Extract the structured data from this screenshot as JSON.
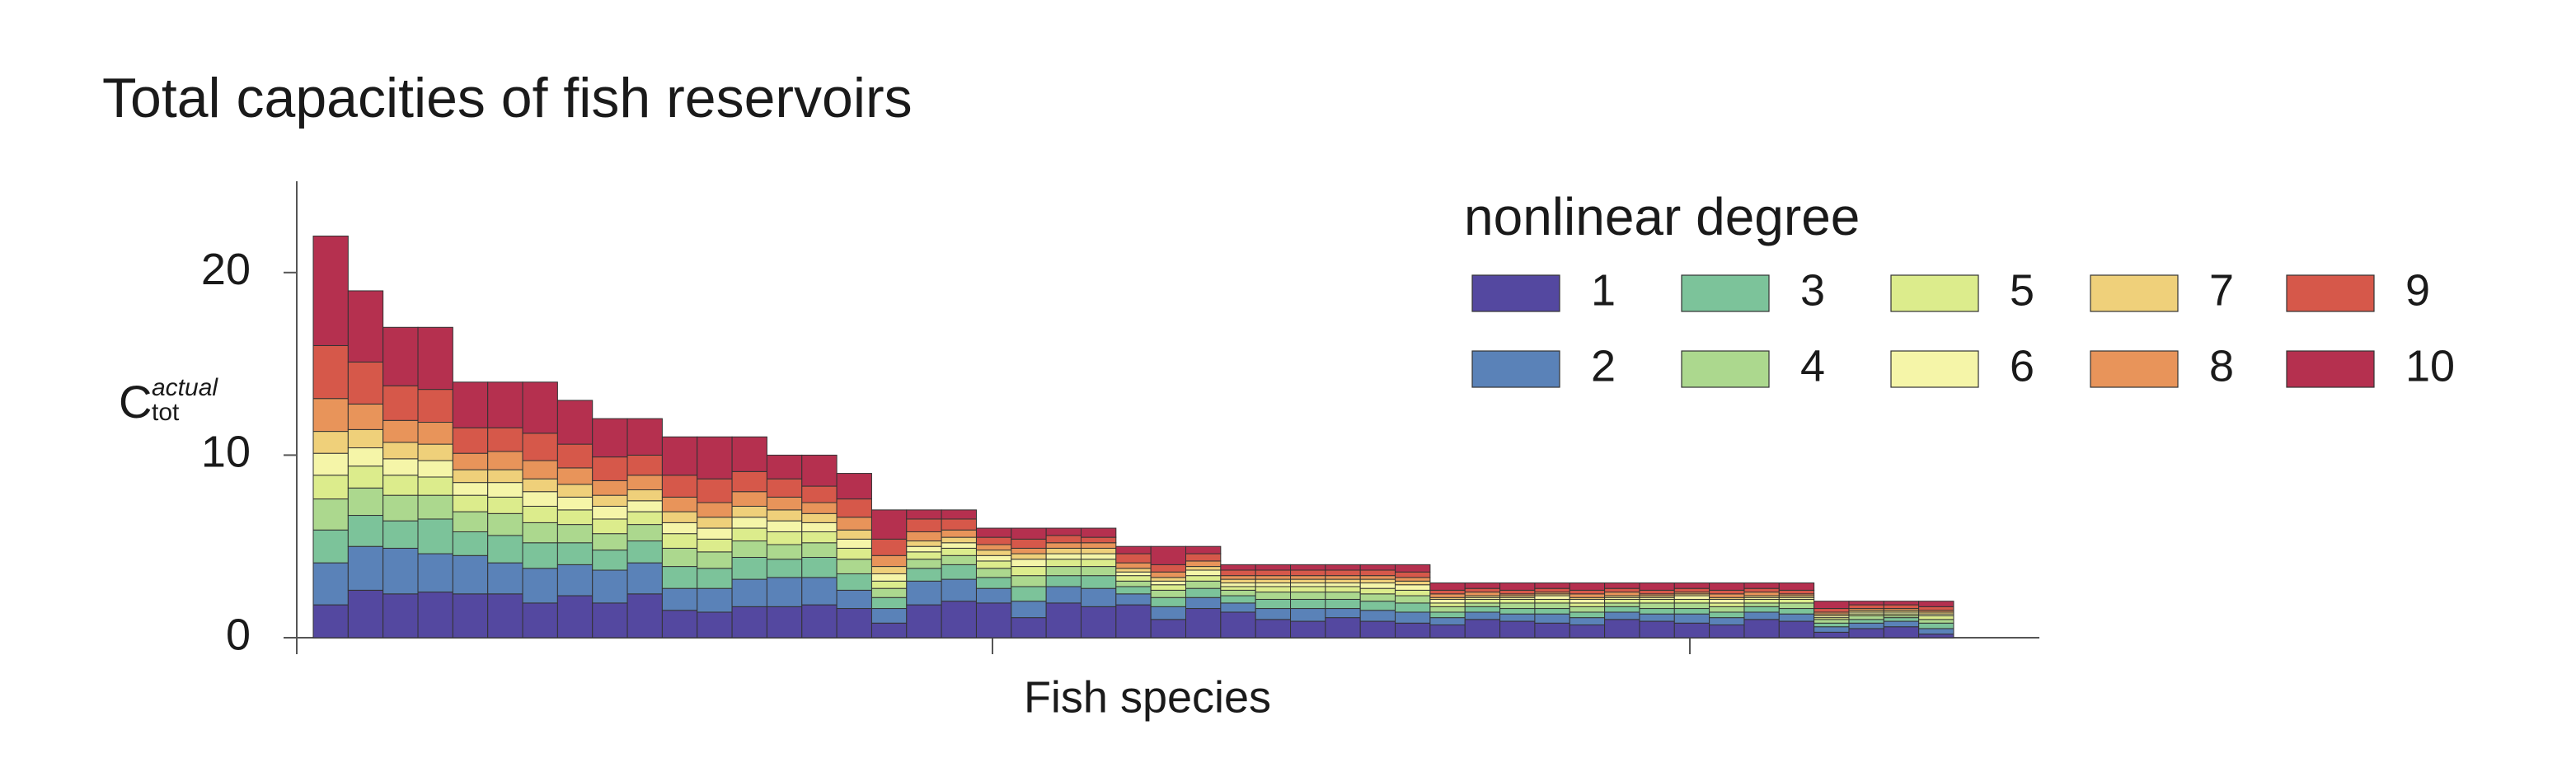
{
  "chart_data": {
    "type": "stacked_bar",
    "title": "Total capacities of fish reservoirs",
    "x_label": "Fish species",
    "y_label": {
      "main": "C",
      "sup": "actual",
      "sub": "tot"
    },
    "legend_title": "nonlinear degree",
    "legend_position": "upper right",
    "grid": false,
    "ylim": [
      0,
      25
    ],
    "yticks": [
      0,
      10,
      20
    ],
    "categories": [
      null,
      null,
      null,
      null,
      null,
      null,
      null,
      null,
      null,
      null,
      null,
      null,
      null,
      null,
      null,
      null,
      null,
      null,
      null,
      null,
      null,
      null,
      null,
      null,
      null,
      null,
      null,
      null,
      null,
      null,
      null,
      null,
      null,
      null,
      null,
      null,
      null,
      null,
      null,
      null,
      null,
      null,
      null,
      null,
      null,
      null,
      null
    ],
    "series": [
      {
        "name": "1",
        "color": "#5448a0",
        "values": [
          1.8,
          2.6,
          2.4,
          2.5,
          2.4,
          2.4,
          1.9,
          2.3,
          1.9,
          2.4,
          1.5,
          1.4,
          1.7,
          1.7,
          1.8,
          1.6,
          0.8,
          1.8,
          2.0,
          1.9,
          1.1,
          1.9,
          1.7,
          1.8,
          1.0,
          1.6,
          1.4,
          1.0,
          0.9,
          1.1,
          0.9,
          0.8,
          0.7,
          1.0,
          0.9,
          0.8,
          0.7,
          1.0,
          0.9,
          0.8,
          0.7,
          1.0,
          0.9,
          0.3,
          0.5,
          0.6,
          0.2
        ]
      },
      {
        "name": "2",
        "color": "#5a82b8",
        "values": [
          2.3,
          2.4,
          2.5,
          2.1,
          2.1,
          1.7,
          1.9,
          1.7,
          1.8,
          1.7,
          1.2,
          1.3,
          1.5,
          1.6,
          1.5,
          1.0,
          0.8,
          1.3,
          1.2,
          0.8,
          0.9,
          0.9,
          1.0,
          0.6,
          0.7,
          0.6,
          0.5,
          0.6,
          0.7,
          0.5,
          0.6,
          0.6,
          0.4,
          0.4,
          0.4,
          0.5,
          0.4,
          0.4,
          0.4,
          0.5,
          0.4,
          0.4,
          0.4,
          0.3,
          0.3,
          0.3,
          0.3
        ]
      },
      {
        "name": "3",
        "color": "#7cc39a",
        "values": [
          1.8,
          1.7,
          1.5,
          1.9,
          1.3,
          1.5,
          1.4,
          1.2,
          1.1,
          1.2,
          1.2,
          1.1,
          1.2,
          1.0,
          1.1,
          0.9,
          0.6,
          0.7,
          0.8,
          0.6,
          0.8,
          0.6,
          0.7,
          0.4,
          0.5,
          0.5,
          0.4,
          0.5,
          0.5,
          0.5,
          0.5,
          0.5,
          0.3,
          0.3,
          0.3,
          0.3,
          0.3,
          0.3,
          0.3,
          0.3,
          0.3,
          0.3,
          0.3,
          0.2,
          0.2,
          0.2,
          0.3
        ]
      },
      {
        "name": "4",
        "color": "#acd88e",
        "values": [
          1.7,
          1.5,
          1.4,
          1.3,
          1.1,
          1.2,
          1.1,
          1.0,
          0.9,
          0.9,
          1.0,
          0.9,
          0.9,
          0.8,
          0.8,
          0.8,
          0.5,
          0.5,
          0.5,
          0.5,
          0.6,
          0.5,
          0.5,
          0.3,
          0.4,
          0.4,
          0.3,
          0.4,
          0.4,
          0.4,
          0.4,
          0.4,
          0.3,
          0.2,
          0.3,
          0.3,
          0.3,
          0.2,
          0.3,
          0.3,
          0.3,
          0.2,
          0.3,
          0.2,
          0.2,
          0.1,
          0.2
        ]
      },
      {
        "name": "5",
        "color": "#dcec8c",
        "values": [
          1.3,
          1.2,
          1.1,
          1.0,
          0.9,
          0.9,
          0.9,
          0.8,
          0.8,
          0.7,
          0.8,
          0.7,
          0.7,
          0.7,
          0.6,
          0.6,
          0.4,
          0.4,
          0.4,
          0.4,
          0.5,
          0.4,
          0.4,
          0.3,
          0.3,
          0.3,
          0.2,
          0.3,
          0.3,
          0.3,
          0.3,
          0.3,
          0.2,
          0.2,
          0.2,
          0.2,
          0.2,
          0.2,
          0.2,
          0.2,
          0.2,
          0.2,
          0.2,
          0.1,
          0.1,
          0.1,
          0.2
        ]
      },
      {
        "name": "6",
        "color": "#f5f5a8",
        "values": [
          1.2,
          1.0,
          0.9,
          0.9,
          0.7,
          0.8,
          0.8,
          0.7,
          0.7,
          0.6,
          0.6,
          0.6,
          0.6,
          0.6,
          0.5,
          0.5,
          0.4,
          0.3,
          0.3,
          0.3,
          0.4,
          0.3,
          0.3,
          0.2,
          0.2,
          0.3,
          0.2,
          0.2,
          0.2,
          0.2,
          0.3,
          0.3,
          0.2,
          0.1,
          0.1,
          0.2,
          0.2,
          0.1,
          0.1,
          0.2,
          0.2,
          0.1,
          0.1,
          0.1,
          0.1,
          0.1,
          0.1
        ]
      },
      {
        "name": "7",
        "color": "#efd07a",
        "values": [
          1.2,
          1.0,
          0.9,
          0.9,
          0.7,
          0.7,
          0.7,
          0.7,
          0.6,
          0.6,
          0.6,
          0.6,
          0.6,
          0.6,
          0.5,
          0.5,
          0.4,
          0.3,
          0.3,
          0.3,
          0.3,
          0.3,
          0.3,
          0.2,
          0.2,
          0.2,
          0.2,
          0.2,
          0.2,
          0.2,
          0.2,
          0.2,
          0.1,
          0.1,
          0.1,
          0.1,
          0.1,
          0.1,
          0.1,
          0.1,
          0.1,
          0.1,
          0.1,
          0.1,
          0.1,
          0.1,
          0.1
        ]
      },
      {
        "name": "8",
        "color": "#e8945a",
        "values": [
          1.8,
          1.4,
          1.2,
          1.2,
          0.9,
          1.0,
          1.0,
          0.9,
          0.8,
          0.8,
          0.8,
          0.8,
          0.8,
          0.7,
          0.6,
          0.7,
          0.6,
          0.5,
          0.4,
          0.3,
          0.3,
          0.3,
          0.3,
          0.3,
          0.3,
          0.3,
          0.2,
          0.2,
          0.2,
          0.2,
          0.2,
          0.2,
          0.2,
          0.2,
          0.1,
          0.1,
          0.2,
          0.2,
          0.1,
          0.1,
          0.2,
          0.2,
          0.1,
          0.1,
          0.1,
          0.1,
          0.1
        ]
      },
      {
        "name": "9",
        "color": "#d6584a",
        "values": [
          2.9,
          2.3,
          1.9,
          1.8,
          1.4,
          1.3,
          1.5,
          1.3,
          1.3,
          1.1,
          1.2,
          1.3,
          1.1,
          1.0,
          0.9,
          1.0,
          0.9,
          0.7,
          0.6,
          0.4,
          0.5,
          0.4,
          0.3,
          0.5,
          0.4,
          0.4,
          0.3,
          0.3,
          0.3,
          0.3,
          0.3,
          0.3,
          0.2,
          0.2,
          0.2,
          0.2,
          0.2,
          0.2,
          0.2,
          0.2,
          0.2,
          0.2,
          0.2,
          0.2,
          0.2,
          0.2,
          0.2
        ]
      },
      {
        "name": "10",
        "color": "#b5304f",
        "values": [
          6.0,
          3.9,
          3.2,
          3.4,
          2.5,
          2.5,
          2.8,
          2.4,
          2.1,
          2.0,
          2.1,
          2.3,
          1.9,
          1.3,
          1.7,
          1.4,
          1.6,
          0.5,
          0.5,
          0.5,
          0.6,
          0.4,
          0.5,
          0.4,
          1.0,
          0.4,
          0.3,
          0.3,
          0.3,
          0.3,
          0.3,
          0.4,
          0.4,
          0.3,
          0.4,
          0.3,
          0.4,
          0.3,
          0.4,
          0.3,
          0.4,
          0.3,
          0.4,
          0.4,
          0.2,
          0.2,
          0.3
        ]
      }
    ]
  }
}
